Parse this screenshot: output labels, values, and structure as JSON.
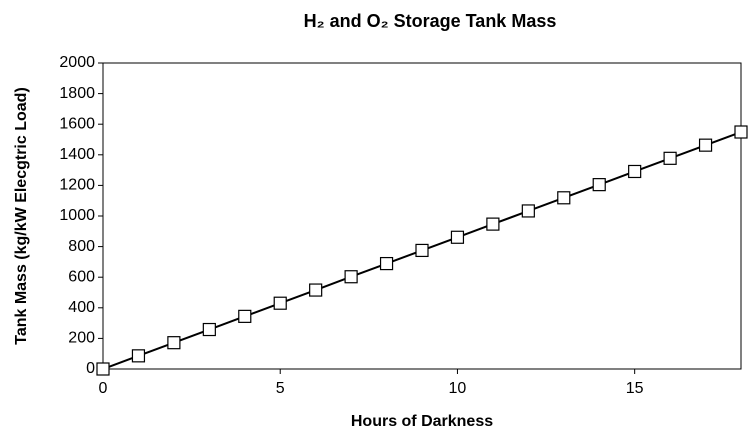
{
  "chart_data": {
    "type": "line",
    "title": "H₂ and O₂ Storage Tank Mass",
    "x_label": "Hours of Darkness",
    "y_label": "Tank Mass (kg/kW Elecgtric Load)",
    "x": [
      0,
      1,
      2,
      3,
      4,
      5,
      6,
      7,
      8,
      9,
      10,
      11,
      12,
      13,
      14,
      15,
      16,
      17,
      18
    ],
    "series": [
      {
        "color": "#000000",
        "values": [
          0,
          86,
          172,
          258,
          344,
          430,
          516,
          603,
          689,
          775,
          861,
          947,
          1033,
          1119,
          1205,
          1291,
          1377,
          1463,
          1549
        ]
      }
    ],
    "xlim": [
      0,
      18
    ],
    "xticks": [
      0,
      5,
      10,
      15
    ],
    "ylim": [
      0,
      2000
    ],
    "yticks": [
      0,
      200,
      400,
      600,
      800,
      1000,
      1200,
      1400,
      1600,
      1800,
      2000
    ],
    "grid": false
  }
}
